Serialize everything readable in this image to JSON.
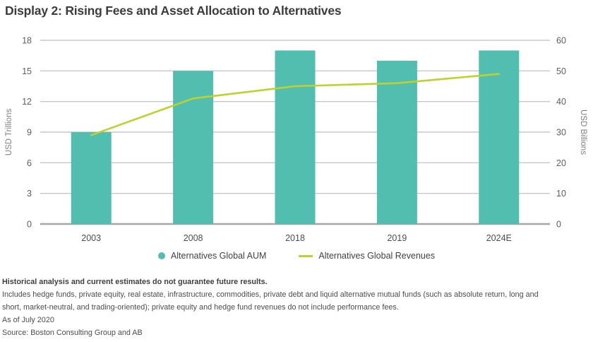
{
  "header": {
    "title": "Display 2: Rising Fees and Asset Allocation to Alternatives"
  },
  "colors": {
    "bar": "#52BEB0",
    "line": "#BDD12F",
    "grid": "#C8C8C8",
    "axis_baseline": "#A6A6A6",
    "title_text": "#3C3C3C"
  },
  "chart_data": {
    "type": "bar+line combo",
    "categories": [
      "2003",
      "2008",
      "2018",
      "2019",
      "2024E"
    ],
    "series": [
      {
        "name": "Alternatives Global AUM",
        "type": "bar",
        "axis": "left",
        "values": [
          9,
          15,
          17,
          16,
          17
        ]
      },
      {
        "name": "Alternatives Global Revenues",
        "type": "line",
        "axis": "right",
        "values": [
          29,
          41,
          45,
          46,
          49
        ]
      }
    ],
    "left_axis": {
      "label": "USD Trillions",
      "min": 0,
      "max": 18,
      "ticks": [
        0,
        3,
        6,
        9,
        12,
        15,
        18
      ]
    },
    "right_axis": {
      "label": "USD Billions",
      "min": 0,
      "max": 60,
      "ticks": [
        0,
        10,
        20,
        30,
        40,
        50,
        60
      ]
    },
    "grid": true,
    "legend_position": "bottom"
  },
  "footnotes": {
    "disclaimer": "Historical analysis and current estimates do not guarantee future results.",
    "includes_1": "Includes hedge funds, private equity, real estate, infrastructure, commodities, private debt and liquid alternative mutual funds (such as absolute return, long and",
    "includes_2": "short, market-neutral, and trading-oriented); private equity and hedge fund revenues do not include performance fees.",
    "as_of": "As of July 2020",
    "source": "Source: Boston Consulting Group and AB"
  }
}
